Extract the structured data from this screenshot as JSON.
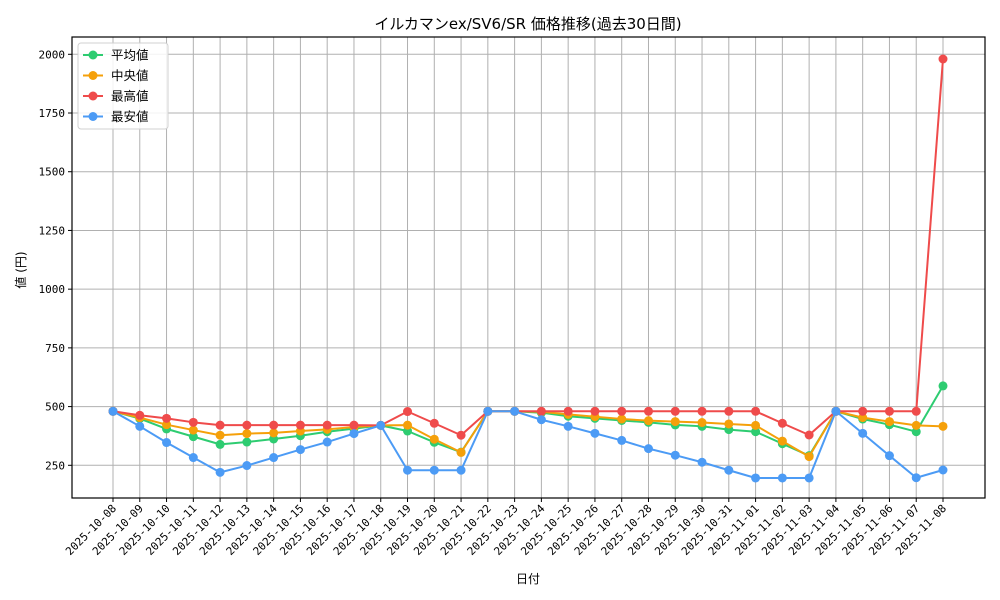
{
  "chart_data": {
    "type": "line",
    "title": "イルカマンex/SV6/SR 価格推移(過去30日間)",
    "xlabel": "日付",
    "ylabel": "値 (円)",
    "ylim": [
      110,
      2065
    ],
    "yticks": [
      250,
      500,
      750,
      1000,
      1250,
      1500,
      1750,
      2000
    ],
    "grid": true,
    "legend_position": "upper left",
    "x": [
      "2025-10-08",
      "2025-10-09",
      "2025-10-10",
      "2025-10-11",
      "2025-10-12",
      "2025-10-13",
      "2025-10-14",
      "2025-10-15",
      "2025-10-16",
      "2025-10-17",
      "2025-10-18",
      "2025-10-19",
      "2025-10-20",
      "2025-10-21",
      "2025-10-22",
      "2025-10-23",
      "2025-10-24",
      "2025-10-25",
      "2025-10-26",
      "2025-10-27",
      "2025-10-28",
      "2025-10-29",
      "2025-10-30",
      "2025-10-31",
      "2025-11-01",
      "2025-11-02",
      "2025-11-03",
      "2025-11-04",
      "2025-11-05",
      "2025-11-06",
      "2025-11-07",
      "2025-11-08"
    ],
    "series": [
      {
        "name": "平均値",
        "color": "#2ecc71",
        "values": [
          480,
          449,
          405,
          372,
          339,
          349,
          362,
          376,
          393,
          406,
          420,
          396,
          348,
          306,
          480,
          480,
          474,
          459,
          450,
          441,
          433,
          422,
          416,
          402,
          393,
          342,
          291,
          480,
          447,
          423,
          393,
          588
        ]
      },
      {
        "name": "中央値",
        "color": "#f5a00a",
        "values": [
          480,
          453,
          423,
          400,
          378,
          385,
          388,
          396,
          403,
          413,
          420,
          421,
          361,
          305,
          480,
          480,
          478,
          467,
          457,
          447,
          440,
          436,
          432,
          426,
          420,
          353,
          287,
          480,
          453,
          436,
          420,
          416
        ]
      },
      {
        "name": "最高値",
        "color": "#ef4b4b",
        "values": [
          480,
          463,
          450,
          433,
          421,
          421,
          421,
          421,
          421,
          421,
          420,
          479,
          429,
          378,
          480,
          480,
          480,
          480,
          480,
          480,
          480,
          480,
          480,
          480,
          480,
          429,
          379,
          480,
          480,
          480,
          480,
          1980
        ]
      },
      {
        "name": "最安値",
        "color": "#4c9bf5",
        "values": [
          480,
          416,
          347,
          283,
          220,
          249,
          283,
          317,
          349,
          385,
          420,
          229,
          229,
          229,
          480,
          480,
          444,
          416,
          386,
          356,
          321,
          293,
          263,
          229,
          196,
          196,
          196,
          480,
          386,
          291,
          197,
          230
        ]
      }
    ]
  },
  "legend": {
    "items": [
      {
        "label": "平均値",
        "color": "#2ecc71"
      },
      {
        "label": "中央値",
        "color": "#f5a00a"
      },
      {
        "label": "最高値",
        "color": "#ef4b4b"
      },
      {
        "label": "最安値",
        "color": "#4c9bf5"
      }
    ]
  }
}
